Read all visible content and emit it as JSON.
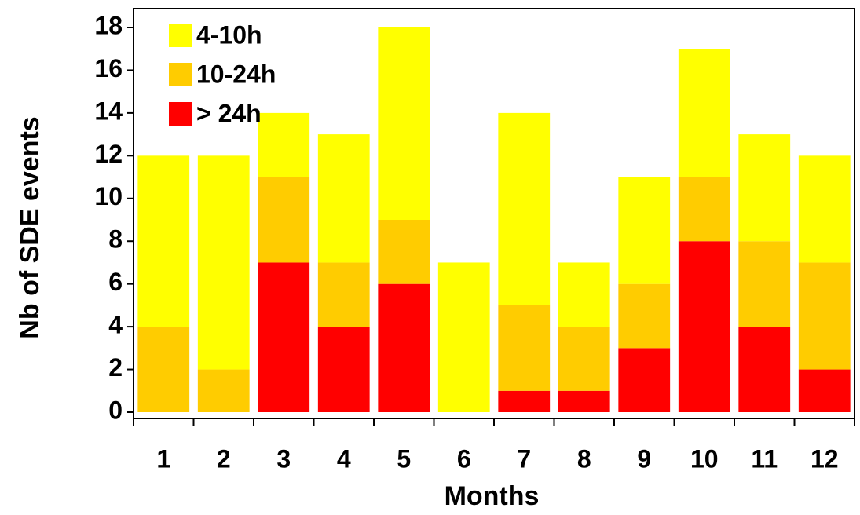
{
  "chart_data": {
    "type": "stacked_bar",
    "xlabel": "Months",
    "ylabel": "Nb of SDE events",
    "categories": [
      "1",
      "2",
      "3",
      "4",
      "5",
      "6",
      "7",
      "8",
      "9",
      "10",
      "11",
      "12"
    ],
    "series": [
      {
        "name": "4-10h",
        "color": "#ffff00",
        "values": [
          8,
          10,
          3,
          6,
          9,
          7,
          9,
          3,
          5,
          6,
          5,
          5
        ]
      },
      {
        "name": "10-24h",
        "color": "#ffcc00",
        "values": [
          4,
          2,
          4,
          3,
          3,
          0,
          4,
          3,
          3,
          3,
          4,
          5
        ]
      },
      {
        "name": "> 24h",
        "color": "#ff0000",
        "values": [
          0,
          0,
          7,
          4,
          6,
          0,
          1,
          1,
          3,
          8,
          4,
          2
        ]
      }
    ],
    "ylim": [
      0,
      18
    ],
    "yticks": [
      0,
      2,
      4,
      6,
      8,
      10,
      12,
      14,
      16,
      18
    ]
  }
}
